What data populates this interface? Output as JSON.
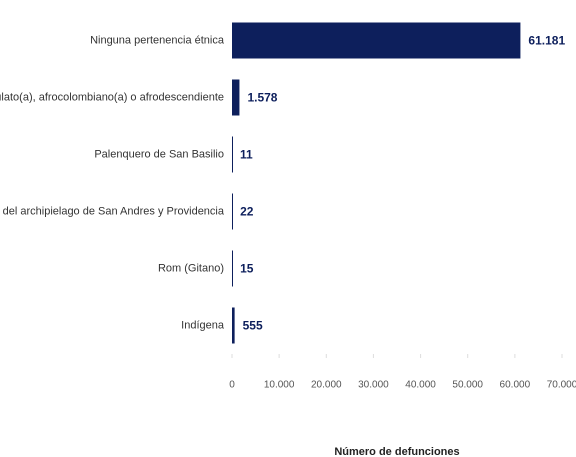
{
  "chart_data": {
    "type": "bar",
    "orientation": "horizontal",
    "categories": [
      "Ninguna pertenencia étnica",
      "Negro(a), mulato(a), afrocolombiano(a) o afrodescendiente",
      "Palenquero de San Basilio",
      "Raizal del archipielago de San Andres y Providencia",
      "Rom (Gitano)",
      "Indígena"
    ],
    "values": [
      61181,
      1578,
      11,
      22,
      15,
      555
    ],
    "value_labels": [
      "61.181",
      "1.578",
      "11",
      "22",
      "15",
      "555"
    ],
    "color": "#0d1f5c",
    "xlim": [
      0,
      70000
    ],
    "xticks": [
      0,
      {
        "value": 10000,
        "label": "10.000"
      },
      {
        "value": 20000,
        "label": "20.000"
      },
      {
        "value": 30000,
        "label": "30.000"
      },
      {
        "value": 40000,
        "label": "40.000"
      },
      {
        "value": 50000,
        "label": "50.000"
      },
      {
        "value": 60000,
        "label": "60.000"
      },
      {
        "value": 70000,
        "label": "70.000"
      }
    ],
    "x_label": "Número de defunciones"
  }
}
